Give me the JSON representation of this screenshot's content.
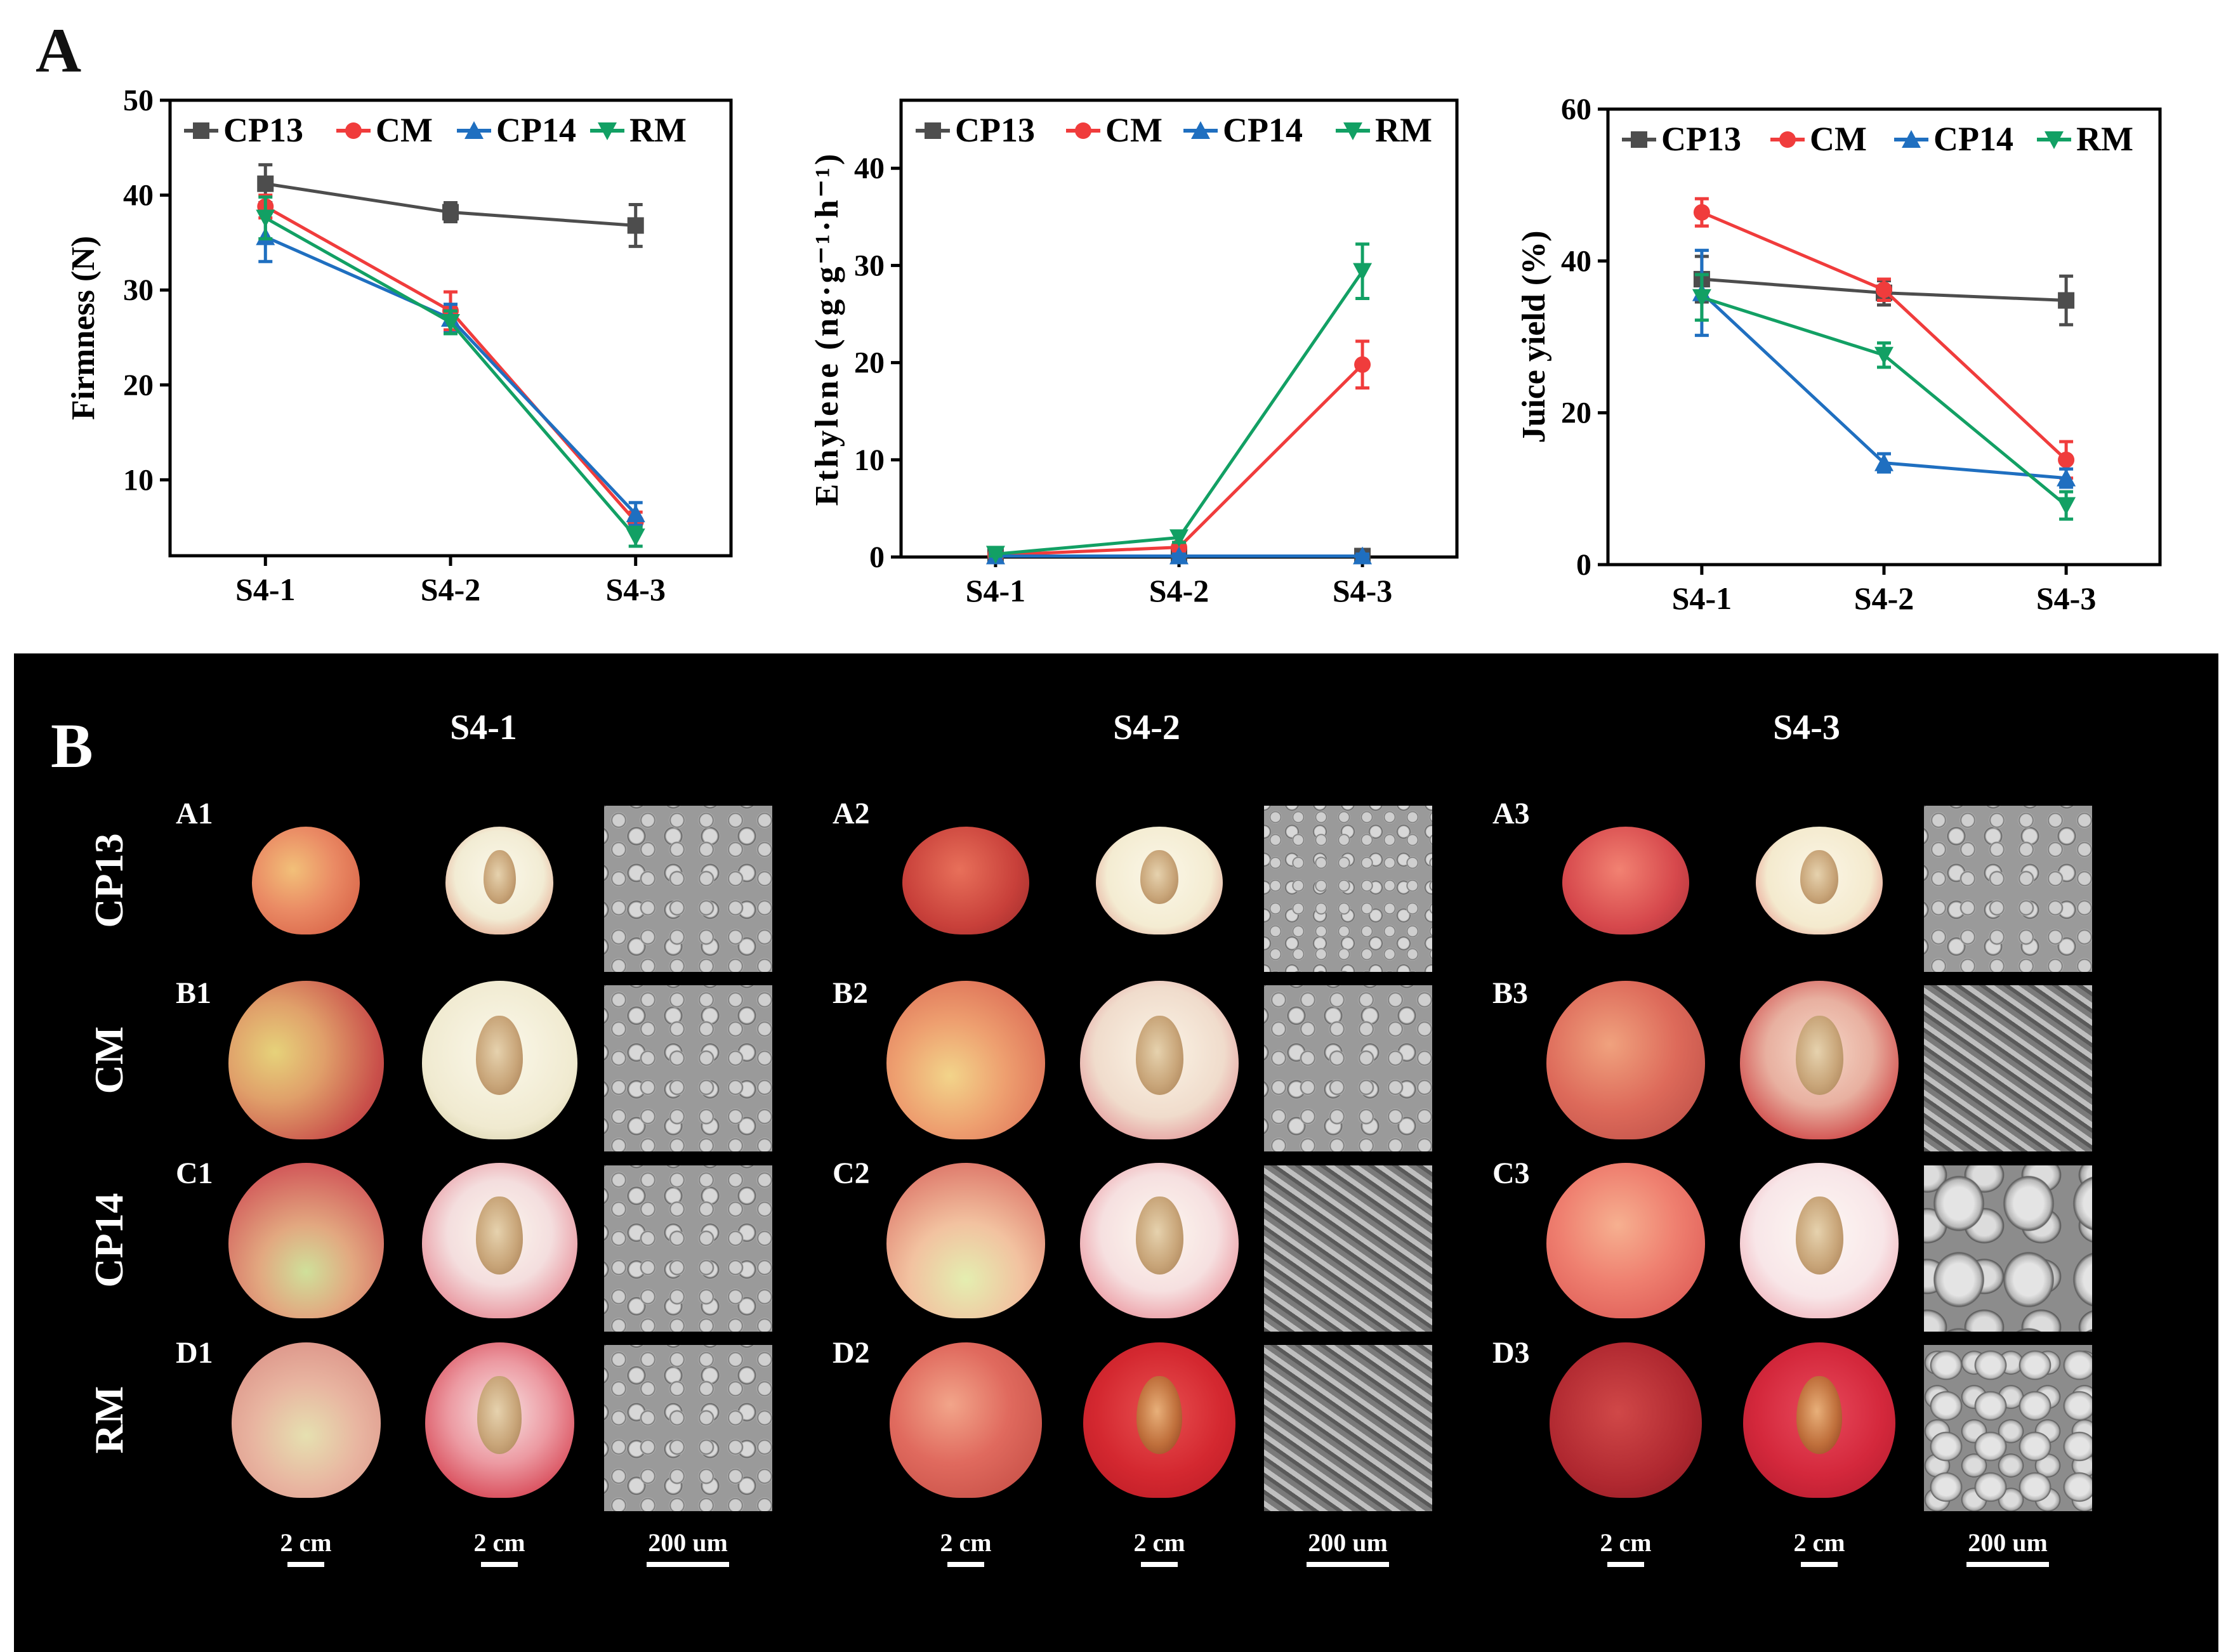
{
  "panel_a_label": "A",
  "panel_b_label": "B",
  "chart_data": [
    {
      "type": "line",
      "id": "firmness",
      "ylabel": "Firmness (N)",
      "xlabel": "",
      "categories": [
        "S4-1",
        "S4-2",
        "S4-3"
      ],
      "ylim": [
        2,
        50
      ],
      "yticks": [
        10,
        20,
        30,
        40,
        50
      ],
      "legend_position": "top",
      "series": [
        {
          "name": "CP13",
          "color": "#4d4d4d",
          "marker": "square",
          "values": [
            41.2,
            38.2,
            36.8
          ],
          "errors": [
            2.0,
            1.0,
            2.2
          ]
        },
        {
          "name": "CM",
          "color": "#f03c3c",
          "marker": "circle",
          "values": [
            38.8,
            27.8,
            5.6
          ],
          "errors": [
            1.2,
            2.0,
            1.0
          ]
        },
        {
          "name": "CP14",
          "color": "#1f6fc0",
          "marker": "triangle-up",
          "values": [
            35.6,
            27.0,
            6.4
          ],
          "errors": [
            2.6,
            1.5,
            1.2
          ]
        },
        {
          "name": "RM",
          "color": "#12a064",
          "marker": "triangle-down",
          "values": [
            37.6,
            26.6,
            4.0
          ],
          "errors": [
            2.2,
            1.2,
            1.0
          ]
        }
      ]
    },
    {
      "type": "line",
      "id": "ethylene",
      "ylabel": "Ethylene (ng·g⁻¹·h⁻¹)",
      "xlabel": "",
      "categories": [
        "S4-1",
        "S4-2",
        "S4-3"
      ],
      "ylim": [
        0,
        47
      ],
      "yticks": [
        0,
        10,
        20,
        30,
        40
      ],
      "legend_position": "top",
      "series": [
        {
          "name": "CP13",
          "color": "#4d4d4d",
          "marker": "square",
          "values": [
            0.1,
            0.1,
            0.1
          ],
          "errors": [
            0.2,
            0.2,
            0.2
          ]
        },
        {
          "name": "CM",
          "color": "#f03c3c",
          "marker": "circle",
          "values": [
            0.2,
            1.0,
            19.8
          ],
          "errors": [
            0.2,
            0.4,
            2.4
          ]
        },
        {
          "name": "CP14",
          "color": "#1f6fc0",
          "marker": "triangle-up",
          "values": [
            0.1,
            0.1,
            0.1
          ],
          "errors": [
            0.2,
            0.2,
            0.2
          ]
        },
        {
          "name": "RM",
          "color": "#12a064",
          "marker": "triangle-down",
          "values": [
            0.3,
            2.0,
            29.4
          ],
          "errors": [
            0.2,
            0.5,
            2.8
          ]
        }
      ]
    },
    {
      "type": "line",
      "id": "juice-yield",
      "ylabel": "Juice yield (%)",
      "xlabel": "",
      "categories": [
        "S4-1",
        "S4-2",
        "S4-3"
      ],
      "ylim": [
        0,
        60
      ],
      "yticks": [
        0,
        20,
        40,
        60
      ],
      "legend_position": "top",
      "series": [
        {
          "name": "CP13",
          "color": "#4d4d4d",
          "marker": "square",
          "values": [
            37.6,
            35.8,
            34.8
          ],
          "errors": [
            3.0,
            1.6,
            3.2
          ]
        },
        {
          "name": "CM",
          "color": "#f03c3c",
          "marker": "circle",
          "values": [
            46.4,
            36.2,
            13.8
          ],
          "errors": [
            1.8,
            1.4,
            2.4
          ]
        },
        {
          "name": "CP14",
          "color": "#1f6fc0",
          "marker": "triangle-up",
          "values": [
            35.8,
            13.4,
            11.4
          ],
          "errors": [
            5.6,
            1.2,
            1.2
          ]
        },
        {
          "name": "RM",
          "color": "#12a064",
          "marker": "triangle-down",
          "values": [
            35.2,
            27.6,
            7.8
          ],
          "errors": [
            3.0,
            1.6,
            1.8
          ]
        }
      ]
    }
  ],
  "photo_grid": {
    "stages": [
      "S4-1",
      "S4-2",
      "S4-3"
    ],
    "rows": [
      {
        "name": "CP13",
        "samples": [
          "A1",
          "A2",
          "A3"
        ]
      },
      {
        "name": "CM",
        "samples": [
          "B1",
          "B2",
          "B3"
        ]
      },
      {
        "name": "CP14",
        "samples": [
          "C1",
          "C2",
          "C3"
        ]
      },
      {
        "name": "RM",
        "samples": [
          "D1",
          "D2",
          "D3"
        ]
      }
    ],
    "scale_fruit": "2 cm",
    "scale_half": "2 cm",
    "scale_sem": "200 um"
  }
}
